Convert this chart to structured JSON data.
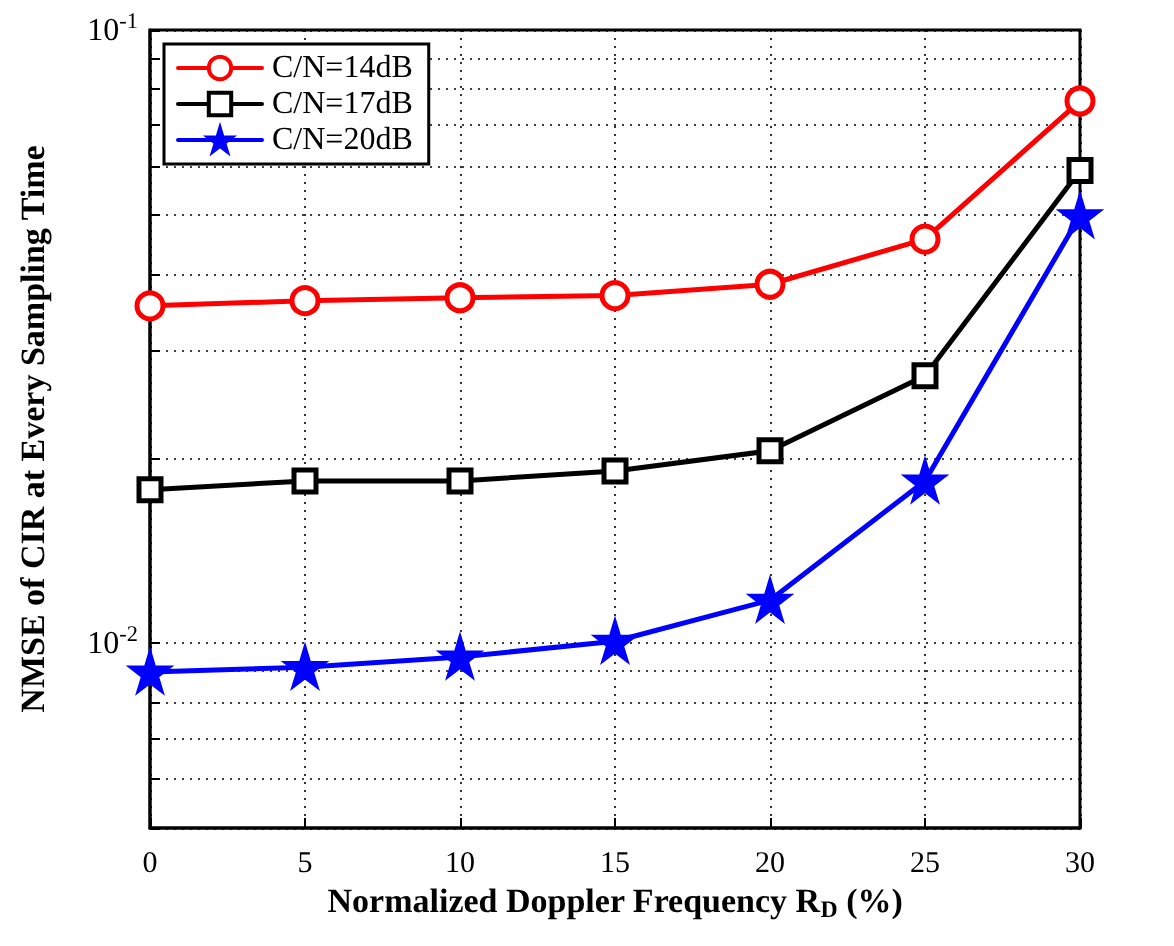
{
  "chart_data": {
    "type": "line",
    "xlabel": "Normalized Doppler Frequency R$_{D}$ (%)",
    "ylabel": "NMSE of CIR at Every Sampling Time",
    "x": [
      0,
      5,
      10,
      15,
      20,
      25,
      30
    ],
    "series": [
      {
        "name": "C/N=14dB",
        "color": "#ff0000",
        "marker": "circle",
        "values": [
          0.0355,
          0.0362,
          0.0366,
          0.0369,
          0.0385,
          0.0456,
          0.0766
        ]
      },
      {
        "name": "C/N=17dB",
        "color": "#000000",
        "marker": "square",
        "values": [
          0.0178,
          0.0184,
          0.0184,
          0.0191,
          0.0206,
          0.0273,
          0.059
        ]
      },
      {
        "name": "C/N=20dB",
        "color": "#0000ff",
        "marker": "star",
        "values": [
          0.00898,
          0.00914,
          0.0095,
          0.01008,
          0.01176,
          0.0184,
          0.0498
        ]
      }
    ],
    "xlim": [
      0,
      30
    ],
    "xticks": [
      0,
      5,
      10,
      15,
      20,
      25,
      30
    ],
    "ylim": [
      0.005,
      0.1
    ],
    "yticks": [
      {
        "value": 0.005,
        "label": null
      },
      {
        "value": 0.006,
        "label": null
      },
      {
        "value": 0.007,
        "label": null
      },
      {
        "value": 0.008,
        "label": null
      },
      {
        "value": 0.009,
        "label": null
      },
      {
        "value": 0.01,
        "label": "10$^{-2}$"
      },
      {
        "value": 0.02,
        "label": null
      },
      {
        "value": 0.03,
        "label": null
      },
      {
        "value": 0.04,
        "label": null
      },
      {
        "value": 0.05,
        "label": null
      },
      {
        "value": 0.06,
        "label": null
      },
      {
        "value": 0.07,
        "label": null
      },
      {
        "value": 0.08,
        "label": null
      },
      {
        "value": 0.09,
        "label": null
      },
      {
        "value": 0.1,
        "label": "10$^{-1}$"
      }
    ],
    "log": "y",
    "grid": true,
    "legend": "top left",
    "line_style": "solid"
  }
}
